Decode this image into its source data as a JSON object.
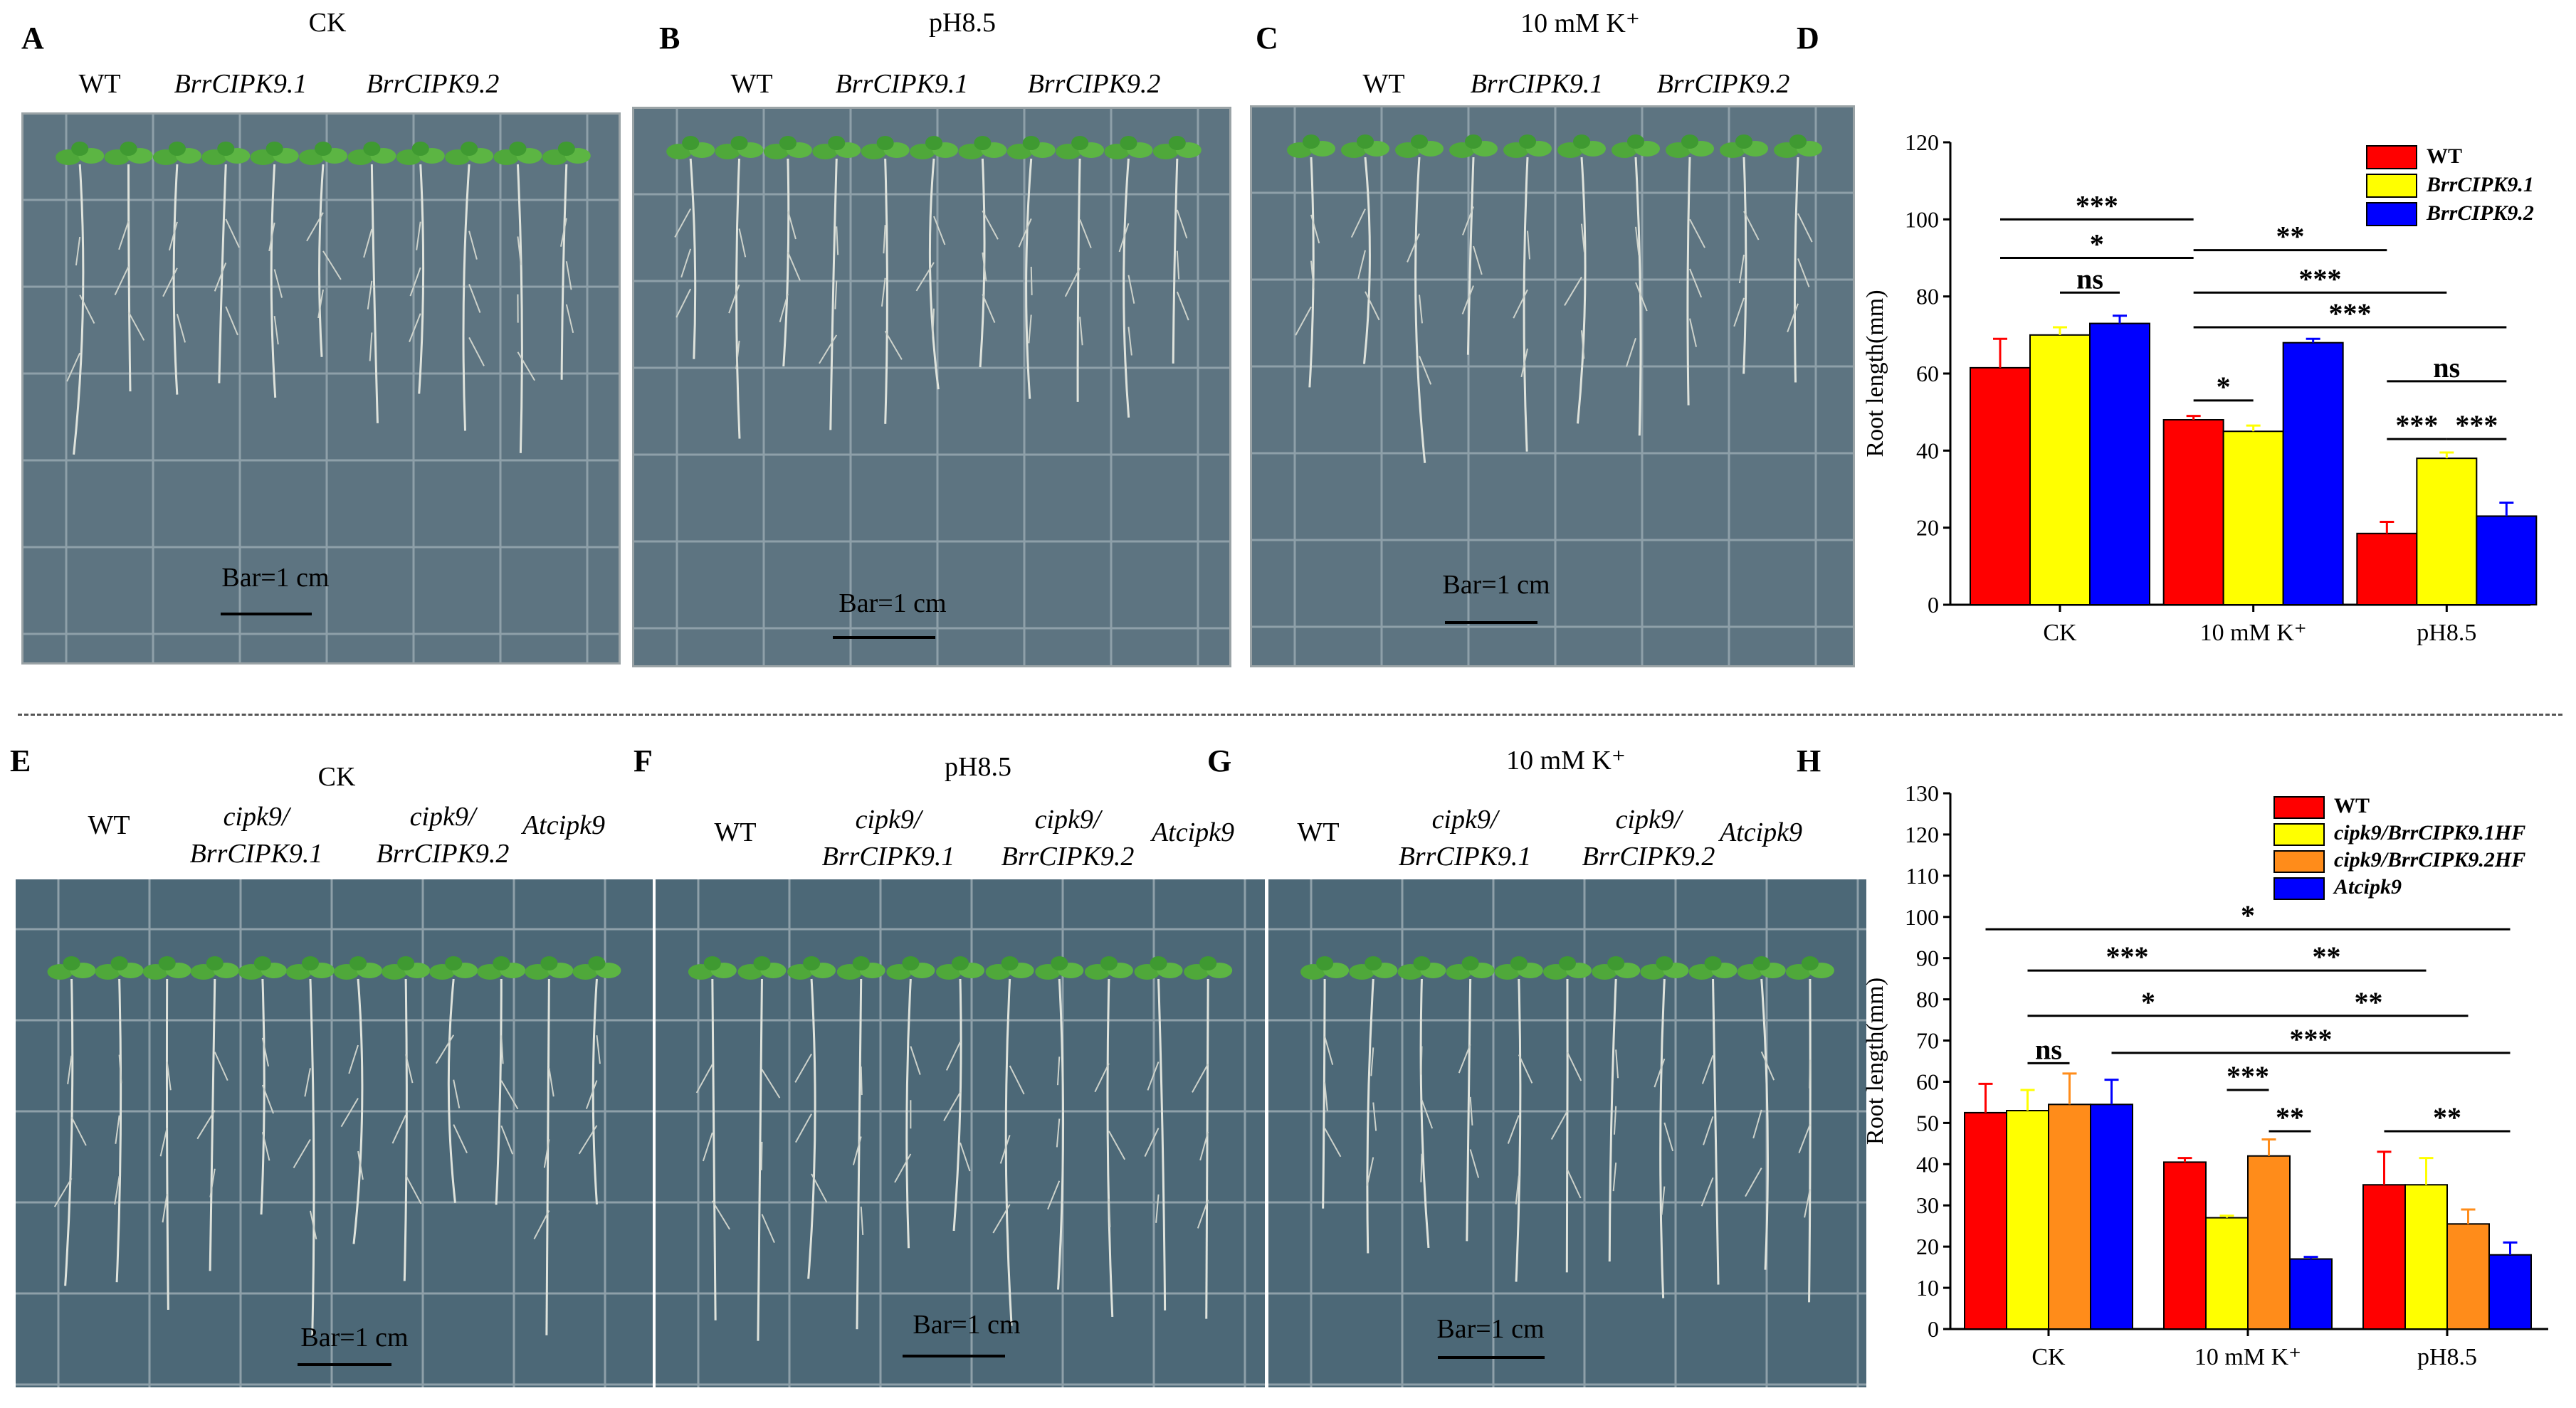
{
  "top": {
    "panels": {
      "A": {
        "label": "A",
        "title": "CK",
        "genotypes": [
          "WT",
          "BrrCIPK9.1",
          "BrrCIPK9.2"
        ],
        "scale": "Bar=1 cm"
      },
      "B": {
        "label": "B",
        "title": "pH8.5",
        "genotypes": [
          "WT",
          "BrrCIPK9.1",
          "BrrCIPK9.2"
        ],
        "scale": "Bar=1 cm"
      },
      "C": {
        "label": "C",
        "title": "10 mM K⁺",
        "genotypes": [
          "WT",
          "BrrCIPK9.1",
          "BrrCIPK9.2"
        ],
        "scale": "Bar=1 cm"
      },
      "D": {
        "label": "D"
      }
    }
  },
  "bottom": {
    "panels": {
      "E": {
        "label": "E",
        "title": "CK",
        "genotypes": [
          [
            "WT"
          ],
          [
            "cipk9/",
            "BrrCIPK9.1"
          ],
          [
            "cipk9/",
            "BrrCIPK9.2"
          ],
          [
            "Atcipk9"
          ]
        ],
        "scale": "Bar=1 cm"
      },
      "F": {
        "label": "F",
        "title": "pH8.5",
        "genotypes": [
          [
            "WT"
          ],
          [
            "cipk9/",
            "BrrCIPK9.1"
          ],
          [
            "cipk9/",
            "BrrCIPK9.2"
          ],
          [
            "Atcipk9"
          ]
        ],
        "scale": "Bar=1 cm"
      },
      "G": {
        "label": "G",
        "title": "10 mM K⁺",
        "genotypes": [
          [
            "WT"
          ],
          [
            "cipk9/",
            "BrrCIPK9.1"
          ],
          [
            "cipk9/",
            "BrrCIPK9.2"
          ],
          [
            "Atcipk9"
          ]
        ],
        "scale": "Bar=1 cm"
      },
      "H": {
        "label": "H"
      }
    }
  },
  "colors": {
    "red": "#ff0000",
    "yellow": "#ffff00",
    "blue": "#0000ff",
    "orange": "#ff8c1a",
    "plate": "#4e6a79",
    "leaf": "#4fa83a",
    "root": "#d9dcd5"
  },
  "chart_data": [
    {
      "id": "D",
      "type": "bar",
      "ylabel": "Root length(mm)",
      "xlabel": "",
      "ylim": [
        0,
        120
      ],
      "yticks": [
        0,
        20,
        40,
        60,
        80,
        100,
        120
      ],
      "categories": [
        "CK",
        "10 mM K⁺",
        "pH8.5"
      ],
      "series": [
        {
          "name": "WT",
          "color": "#ff0000",
          "values": [
            61.5,
            48,
            18.5
          ],
          "errors": [
            7.5,
            1,
            3
          ],
          "italic": false
        },
        {
          "name": "BrrCIPK9.1",
          "color": "#ffff00",
          "values": [
            70,
            45,
            38
          ],
          "errors": [
            2,
            1.5,
            1.5
          ],
          "italic": true
        },
        {
          "name": "BrrCIPK9.2",
          "color": "#0000ff",
          "values": [
            73,
            68,
            23
          ],
          "errors": [
            2,
            1,
            3.5
          ],
          "italic": true
        }
      ],
      "legend_position": "top-right",
      "annotations": [
        {
          "text": "***",
          "g1": 0,
          "s1": 0,
          "g2": 1,
          "s2": 0,
          "y": 100
        },
        {
          "text": "*",
          "g1": 0,
          "s1": 0,
          "g2": 1,
          "s2": 0,
          "y": 90
        },
        {
          "text": "ns",
          "g1": 0,
          "s1": 1,
          "g2": 0,
          "s2": 2,
          "y": 81
        },
        {
          "text": "**",
          "g1": 1,
          "s1": 0,
          "g2": 2,
          "s2": 0,
          "y": 92
        },
        {
          "text": "***",
          "g1": 1,
          "s1": 0,
          "g2": 2,
          "s2": 1,
          "y": 81
        },
        {
          "text": "***",
          "g1": 1,
          "s1": 0,
          "g2": 2,
          "s2": 2,
          "y": 72
        },
        {
          "text": "*",
          "g1": 1,
          "s1": 0,
          "g2": 1,
          "s2": 1,
          "y": 53
        },
        {
          "text": "ns",
          "g1": 2,
          "s1": 0,
          "g2": 2,
          "s2": 2,
          "y": 58
        },
        {
          "text": "***",
          "g1": 2,
          "s1": 0,
          "g2": 2,
          "s2": 1,
          "y": 43
        },
        {
          "text": "***",
          "g1": 2,
          "s1": 1,
          "g2": 2,
          "s2": 2,
          "y": 43
        }
      ]
    },
    {
      "id": "H",
      "type": "bar",
      "ylabel": "Root length(mm)",
      "xlabel": "",
      "ylim": [
        0,
        130
      ],
      "yticks": [
        0,
        10,
        20,
        30,
        40,
        50,
        60,
        70,
        80,
        90,
        100,
        110,
        120,
        130
      ],
      "categories": [
        "CK",
        "10 mM K⁺",
        "pH8.5"
      ],
      "series": [
        {
          "name": "WT",
          "color": "#ff0000",
          "values": [
            52.5,
            40.5,
            35
          ],
          "errors": [
            7,
            1,
            8
          ],
          "italic": false
        },
        {
          "name": "cipk9/BrrCIPK9.1HF",
          "color": "#ffff00",
          "values": [
            53,
            27,
            35
          ],
          "errors": [
            5,
            0.5,
            6.5
          ],
          "italic": true
        },
        {
          "name": "cipk9/BrrCIPK9.2HF",
          "color": "#ff8c1a",
          "values": [
            54.5,
            42,
            25.5
          ],
          "errors": [
            7.5,
            4,
            3.5
          ],
          "italic": true
        },
        {
          "name": "Atcipk9",
          "color": "#0000ff",
          "values": [
            54.5,
            17,
            18
          ],
          "errors": [
            6,
            0.5,
            3
          ],
          "italic": true
        }
      ],
      "legend_position": "top-right",
      "annotations": [
        {
          "text": "*",
          "g1": 0,
          "s1": 0,
          "g2": 2,
          "s2": 3,
          "y": 97
        },
        {
          "text": "***",
          "g1": 0,
          "s1": 1,
          "g2": 1,
          "s2": 1,
          "y": 87
        },
        {
          "text": "**",
          "g1": 1,
          "s1": 1,
          "g2": 2,
          "s2": 1,
          "y": 87
        },
        {
          "text": "*",
          "g1": 0,
          "s1": 1,
          "g2": 1,
          "s2": 2,
          "y": 76
        },
        {
          "text": "**",
          "g1": 1,
          "s1": 2,
          "g2": 2,
          "s2": 2,
          "y": 76
        },
        {
          "text": "ns",
          "g1": 0,
          "s1": 1,
          "g2": 0,
          "s2": 2,
          "y": 64.5
        },
        {
          "text": "***",
          "g1": 0,
          "s1": 3,
          "g2": 2,
          "s2": 3,
          "y": 67
        },
        {
          "text": "***",
          "g1": 1,
          "s1": 1,
          "g2": 1,
          "s2": 2,
          "y": 58
        },
        {
          "text": "**",
          "g1": 1,
          "s1": 2,
          "g2": 1,
          "s2": 3,
          "y": 48
        },
        {
          "text": "**",
          "g1": 2,
          "s1": 0,
          "g2": 2,
          "s2": 3,
          "y": 48
        }
      ]
    }
  ]
}
